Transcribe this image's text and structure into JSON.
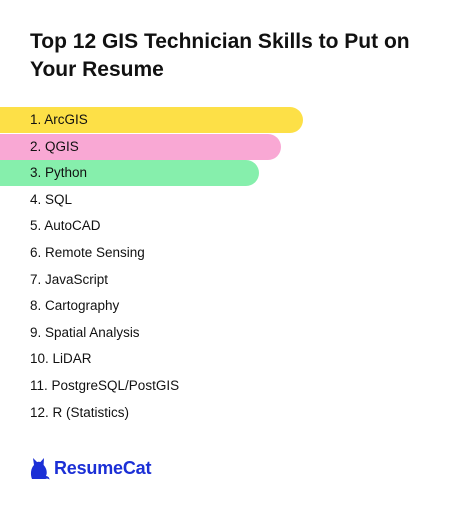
{
  "header": {
    "title": "Top 12 GIS Technician Skills to Put on Your Resume"
  },
  "skills": [
    {
      "label": "1. ArcGIS"
    },
    {
      "label": "2. QGIS"
    },
    {
      "label": "3. Python"
    },
    {
      "label": "4. SQL"
    },
    {
      "label": "5. AutoCAD"
    },
    {
      "label": "6. Remote Sensing"
    },
    {
      "label": "7. JavaScript"
    },
    {
      "label": "8. Cartography"
    },
    {
      "label": "9. Spatial Analysis"
    },
    {
      "label": "10. LiDAR"
    },
    {
      "label": "11. PostgreSQL/PostGIS"
    },
    {
      "label": "12. R (Statistics)"
    }
  ],
  "brand": {
    "name": "ResumeCat",
    "icon": "cat-icon",
    "color": "#1b2fd6"
  },
  "colors": {
    "highlight_1": "#fde047",
    "highlight_2": "#f9a8d4",
    "highlight_3": "#86efac"
  }
}
